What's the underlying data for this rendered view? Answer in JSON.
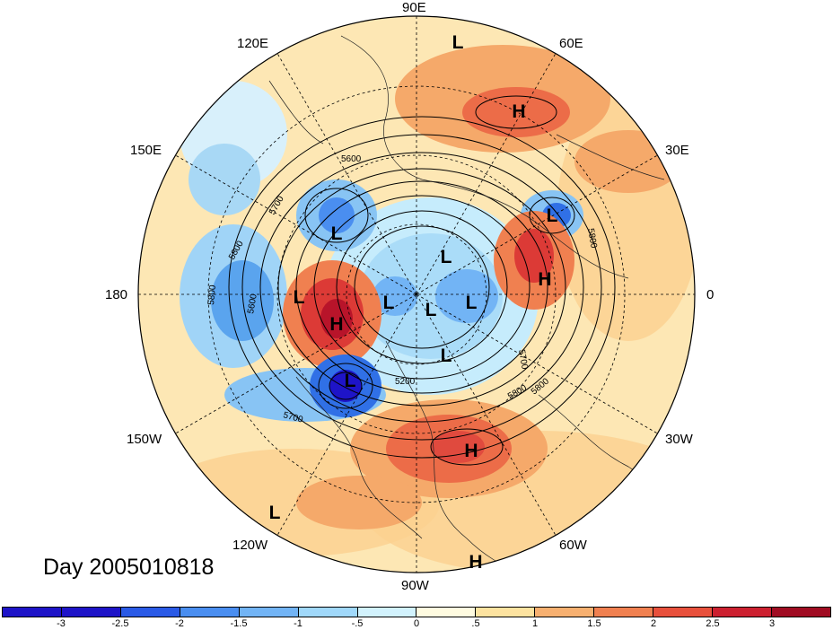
{
  "map": {
    "day_label": "Day 2005010818",
    "longitude_labels": [
      "90E",
      "60E",
      "30E",
      "0",
      "30W",
      "60W",
      "90W",
      "120W",
      "150W",
      "180",
      "150E",
      "120E"
    ],
    "contour_labels": [
      "5600",
      "5700",
      "5800",
      "5800",
      "5800",
      "5600",
      "5700",
      "5200",
      "5700",
      "5800",
      "5800"
    ],
    "highs_lows": [
      "L",
      "H",
      "L",
      "L",
      "H",
      "L",
      "L",
      "L",
      "L",
      "H",
      "L",
      "L",
      "H",
      "L",
      "H"
    ]
  },
  "colorbar": {
    "ticks": [
      "-3",
      "-2.5",
      "-2",
      "-1.5",
      "-1",
      "-.5",
      "0",
      ".5",
      "1",
      "1.5",
      "2",
      "2.5",
      "3"
    ],
    "colors": [
      "#1e14c8",
      "#2a5ae6",
      "#4a8ef0",
      "#72b4f5",
      "#a0d8fa",
      "#d2f2fd",
      "#fffbe0",
      "#fde3a0",
      "#f7b070",
      "#f08050",
      "#e8503c",
      "#cc2030",
      "#a00c22"
    ]
  }
}
